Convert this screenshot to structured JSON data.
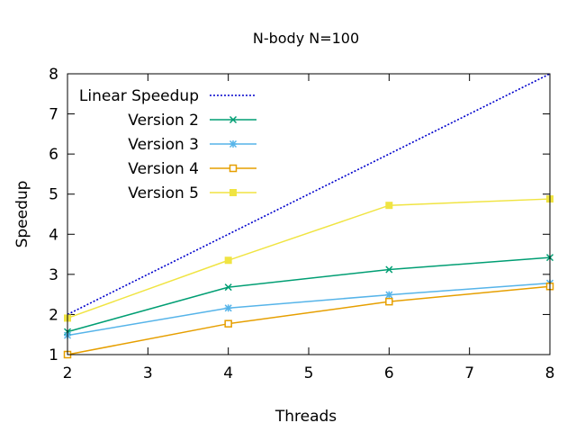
{
  "chart_data": {
    "type": "line",
    "title": "N-body N=100",
    "xlabel": "Threads",
    "ylabel": "Speedup",
    "xlim": [
      2,
      8
    ],
    "ylim": [
      1,
      8
    ],
    "xticks": [
      "2",
      "3",
      "4",
      "5",
      "6",
      "7",
      "8"
    ],
    "yticks": [
      "1",
      "2",
      "3",
      "4",
      "5",
      "6",
      "7",
      "8"
    ],
    "grid": false,
    "legend_position": "top-left",
    "series": [
      {
        "name": "Linear Speedup",
        "color": "#0000cc",
        "style": "dotted",
        "marker": "none",
        "x": [
          2,
          8
        ],
        "y": [
          2,
          8
        ]
      },
      {
        "name": "Version 2",
        "color": "#009e73",
        "style": "solid",
        "marker": "x",
        "x": [
          2,
          4,
          6,
          8
        ],
        "y": [
          1.57,
          2.68,
          3.12,
          3.42
        ]
      },
      {
        "name": "Version 3",
        "color": "#56b4e9",
        "style": "solid",
        "marker": "star",
        "x": [
          2,
          4,
          6,
          8
        ],
        "y": [
          1.48,
          2.16,
          2.49,
          2.78
        ]
      },
      {
        "name": "Version 4",
        "color": "#e69f00",
        "style": "solid",
        "marker": "square-open",
        "x": [
          2,
          4,
          6,
          8
        ],
        "y": [
          1.0,
          1.77,
          2.32,
          2.7
        ]
      },
      {
        "name": "Version 5",
        "color": "#f0e442",
        "style": "solid",
        "marker": "square-filled",
        "x": [
          2,
          4,
          6,
          8
        ],
        "y": [
          1.91,
          3.35,
          4.72,
          4.88
        ]
      }
    ]
  }
}
